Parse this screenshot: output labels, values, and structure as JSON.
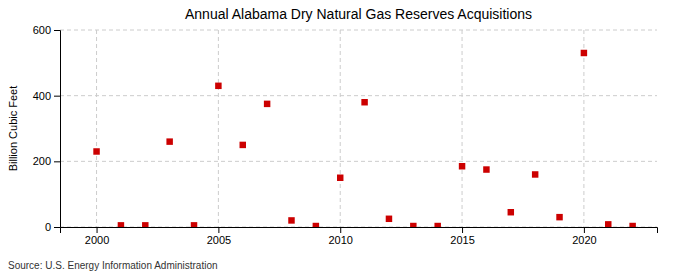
{
  "chart_data": {
    "type": "scatter",
    "title": "Annual Alabama Dry Natural Gas Reserves Acquisitions",
    "ylabel": "Billion Cubic Feet",
    "annotations": [
      "Source: U.S. Energy Information Administration"
    ],
    "x": [
      2000,
      2001,
      2002,
      2003,
      2004,
      2005,
      2006,
      2007,
      2008,
      2009,
      2010,
      2011,
      2012,
      2013,
      2014,
      2015,
      2016,
      2017,
      2018,
      2019,
      2020,
      2021,
      2022
    ],
    "values": [
      230,
      5,
      5,
      260,
      5,
      430,
      250,
      375,
      20,
      3,
      150,
      380,
      25,
      3,
      3,
      185,
      175,
      45,
      160,
      30,
      530,
      8,
      3
    ],
    "color": "#cc0000",
    "marker": "square",
    "xlim": [
      1998.5,
      2023
    ],
    "ylim": [
      0,
      600
    ],
    "xticks": [
      2000,
      2005,
      2010,
      2015,
      2020
    ],
    "yticks": [
      0,
      200,
      400,
      600
    ],
    "grid": true
  }
}
